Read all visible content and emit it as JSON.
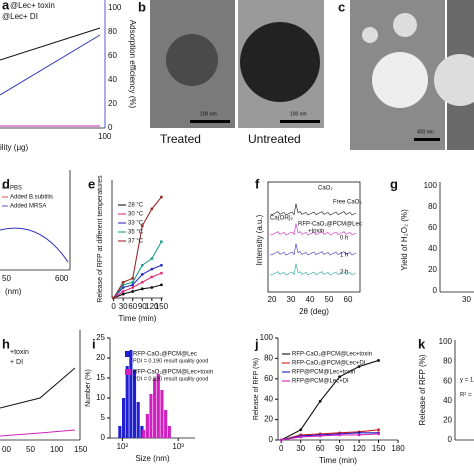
{
  "panels": {
    "a": {
      "letter": "a",
      "legend": [
        "@Lec+ toxin",
        "@Lec+ DI"
      ],
      "y2label": "Adsorption efficiency (%)",
      "y2ticks": [
        "100",
        "80",
        "60",
        "40",
        "20",
        "0"
      ],
      "xlabel": "ility (μg)",
      "xtick": "100"
    },
    "b": {
      "letter": "b",
      "captions": [
        "Treated",
        "Untreated"
      ],
      "scales": [
        "100 nm",
        "100 nm"
      ]
    },
    "c": {
      "letter": "c",
      "scale": "400 nm"
    },
    "d": {
      "letter": "d",
      "legend": [
        "PBS",
        "Added B.subtilis",
        "Added MRSA"
      ],
      "xticks": [
        "50",
        "600"
      ],
      "xlabel": "(nm)"
    },
    "f": {
      "letter": "f",
      "labels": [
        "CaO₂",
        "Free CaO₂",
        "Ca(OH)₂",
        "RFP-CaO₂@PCM@Lec",
        "+toxin",
        "0 h",
        "1 h",
        "2 h"
      ],
      "ylabel": "Intensity (a.u.)",
      "xlabel": "2θ (deg)",
      "xticks": [
        "20",
        "30",
        "40",
        "50",
        "60"
      ]
    },
    "g": {
      "letter": "g",
      "ylabel": "Yield of H₂O₂ (%)",
      "yticks": [
        "100",
        "80",
        "60",
        "40",
        "20",
        "0"
      ],
      "xtick": "30"
    },
    "h": {
      "letter": "h",
      "legend": [
        "+toxin",
        "+ DI"
      ],
      "xticks": [
        "00",
        "50",
        "100",
        "150"
      ]
    },
    "k": {
      "letter": "k",
      "ylabel": "Release of RFP (%)",
      "yticks": [
        "100",
        "80",
        "60",
        "40",
        "20",
        "0"
      ],
      "eq": [
        "y = 1.",
        "R² ="
      ]
    },
    "e": {
      "letter": "e"
    },
    "i": {
      "letter": "i"
    },
    "j": {
      "letter": "j"
    }
  },
  "chart_data": [
    {
      "type": "line",
      "ylabel": "Release of RFP at different temperatures",
      "xlabel": "Time (min)",
      "x": [
        0,
        30,
        60,
        90,
        120,
        150
      ],
      "xlim": [
        -5,
        155
      ],
      "xticks": [
        0,
        30,
        60,
        90,
        120,
        150
      ],
      "ylim": [
        0,
        90
      ],
      "series": [
        {
          "name": "28 °C",
          "color": "#111111",
          "values": [
            0,
            3,
            5,
            7,
            8,
            10
          ]
        },
        {
          "name": "30 °C",
          "color": "#e0307a",
          "values": [
            0,
            5,
            8,
            12,
            16,
            19
          ]
        },
        {
          "name": "33 °C",
          "color": "#3030c0",
          "values": [
            0,
            8,
            10,
            18,
            22,
            25
          ]
        },
        {
          "name": "35 °C",
          "color": "#20a090",
          "values": [
            0,
            10,
            12,
            25,
            30,
            43
          ]
        },
        {
          "name": "37 °C",
          "color": "#9a2a2a",
          "values": [
            0,
            12,
            15,
            55,
            68,
            77
          ]
        }
      ]
    },
    {
      "type": "hist",
      "ylabel": "Number (%)",
      "xlabel": "Size (nm)",
      "xlog": true,
      "xlim": [
        60,
        2000
      ],
      "xticks": [
        {
          "value": 100,
          "label": "10²"
        },
        {
          "value": 1000,
          "label": "10³"
        }
      ],
      "ylim": [
        0,
        25
      ],
      "yticks": [
        0,
        5,
        10,
        15,
        20,
        25
      ],
      "series": [
        {
          "name": "RFP-CaO₂@PCM@Lec",
          "note": "PDI = 0.190 result quality good",
          "color": "#2020d0",
          "x": [
            90,
            105,
            122,
            142,
            165,
            192,
            224
          ],
          "values": [
            3,
            10,
            18,
            22,
            17,
            9,
            3
          ]
        },
        {
          "name": "RFP-CaO₂@PCM@Lec+toxin",
          "note": "PDI = 0.220 result quality good",
          "color": "#d020c0",
          "x": [
            240,
            280,
            325,
            378,
            440,
            512,
            596,
            694
          ],
          "values": [
            2,
            6,
            11,
            15,
            16,
            12,
            7,
            3
          ]
        }
      ]
    },
    {
      "type": "line",
      "ylabel": "Release of RFP (%)",
      "xlabel": "Time (min)",
      "x": [
        0,
        30,
        60,
        90,
        120,
        150
      ],
      "xlim": [
        -5,
        180
      ],
      "xticks": [
        0,
        30,
        60,
        90,
        120,
        150,
        180
      ],
      "ylim": [
        0,
        100
      ],
      "yticks": [
        0,
        20,
        40,
        60,
        80,
        100
      ],
      "series": [
        {
          "name": "RFP-CaO₂@PCM@Lec+toxin",
          "color": "#111111",
          "values": [
            0,
            10,
            38,
            62,
            72,
            78
          ]
        },
        {
          "name": "RFP-CaO₂@PCM@Lec+DI",
          "color": "#d02020",
          "values": [
            0,
            5,
            6,
            7,
            8,
            10
          ]
        },
        {
          "name": "RFP@PCM@Lec+toxin",
          "color": "#2020c0",
          "values": [
            0,
            4,
            5,
            6,
            7,
            7
          ]
        },
        {
          "name": "RFP@PCM@Lec+DI",
          "color": "#d020c0",
          "values": [
            0,
            3,
            4,
            5,
            5,
            6
          ]
        }
      ]
    }
  ]
}
